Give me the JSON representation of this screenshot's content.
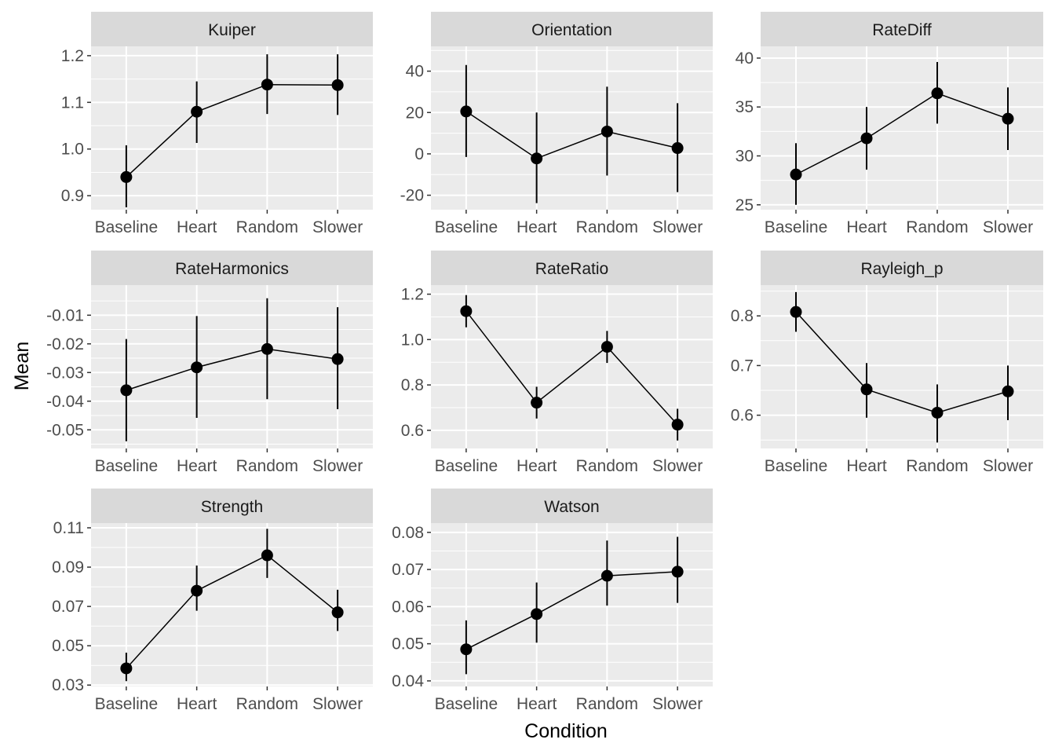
{
  "chart_data": {
    "type": "line",
    "xlabel": "Condition",
    "ylabel": "Mean",
    "categories": [
      "Baseline",
      "Heart",
      "Random",
      "Slower"
    ],
    "panels": [
      {
        "name": "Kuiper",
        "ylim": [
          0.87,
          1.22
        ],
        "yticks": [
          0.9,
          1.0,
          1.1,
          1.2
        ],
        "tick_labels": [
          "0.9",
          "1.0",
          "1.1",
          "1.2"
        ],
        "mean": [
          0.94,
          1.08,
          1.138,
          1.137
        ],
        "lower": [
          0.875,
          1.013,
          1.075,
          1.073
        ],
        "upper": [
          1.008,
          1.145,
          1.203,
          1.203
        ]
      },
      {
        "name": "Orientation",
        "ylim": [
          -27,
          52
        ],
        "yticks": [
          -20,
          0,
          20,
          40
        ],
        "tick_labels": [
          "-20",
          "0",
          "20",
          "40"
        ],
        "mean": [
          20.5,
          -2.2,
          10.8,
          2.8
        ],
        "lower": [
          -1.5,
          -23.8,
          -10.5,
          -18.5
        ],
        "upper": [
          43,
          20,
          32.5,
          24.5
        ]
      },
      {
        "name": "RateDiff",
        "ylim": [
          24.5,
          41.2
        ],
        "yticks": [
          25,
          30,
          35,
          40
        ],
        "tick_labels": [
          "25",
          "30",
          "35",
          "40"
        ],
        "mean": [
          28.1,
          31.8,
          36.4,
          33.8
        ],
        "lower": [
          25,
          28.6,
          33.3,
          30.6
        ],
        "upper": [
          31.3,
          35,
          39.6,
          37
        ]
      },
      {
        "name": "RateHarmonics",
        "ylim": [
          -0.0565,
          0.0005
        ],
        "yticks": [
          -0.05,
          -0.04,
          -0.03,
          -0.02,
          -0.01
        ],
        "tick_labels": [
          "-0.05",
          "-0.04",
          "-0.03",
          "-0.02",
          "-0.01"
        ],
        "mean": [
          -0.0362,
          -0.0282,
          -0.0218,
          -0.0253
        ],
        "lower": [
          -0.054,
          -0.0458,
          -0.0393,
          -0.0428
        ],
        "upper": [
          -0.0183,
          -0.0103,
          -0.0041,
          -0.0072
        ]
      },
      {
        "name": "RateRatio",
        "ylim": [
          0.52,
          1.24
        ],
        "yticks": [
          0.6,
          0.8,
          1.0,
          1.2
        ],
        "tick_labels": [
          "0.6",
          "0.8",
          "1.0",
          "1.2"
        ],
        "mean": [
          1.125,
          0.722,
          0.968,
          0.625
        ],
        "lower": [
          1.054,
          0.652,
          0.897,
          0.555
        ],
        "upper": [
          1.196,
          0.792,
          1.038,
          0.695
        ]
      },
      {
        "name": "Rayleigh_p",
        "ylim": [
          0.533,
          0.862
        ],
        "yticks": [
          0.6,
          0.7,
          0.8
        ],
        "tick_labels": [
          "0.6",
          "0.7",
          "0.8"
        ],
        "mean": [
          0.808,
          0.652,
          0.605,
          0.648
        ],
        "lower": [
          0.768,
          0.595,
          0.545,
          0.59
        ],
        "upper": [
          0.848,
          0.705,
          0.662,
          0.7
        ]
      },
      {
        "name": "Strength",
        "ylim": [
          0.0293,
          0.1124
        ],
        "yticks": [
          0.03,
          0.05,
          0.07,
          0.09,
          0.11
        ],
        "tick_labels": [
          "0.03",
          "0.05",
          "0.07",
          "0.09",
          "0.11"
        ],
        "mean": [
          0.0385,
          0.078,
          0.096,
          0.067
        ],
        "lower": [
          0.032,
          0.0678,
          0.0845,
          0.0575
        ],
        "upper": [
          0.0465,
          0.0908,
          0.1095,
          0.0785
        ]
      },
      {
        "name": "Watson",
        "ylim": [
          0.0385,
          0.0825
        ],
        "yticks": [
          0.04,
          0.05,
          0.06,
          0.07,
          0.08
        ],
        "tick_labels": [
          "0.04",
          "0.05",
          "0.06",
          "0.07",
          "0.08"
        ],
        "mean": [
          0.0485,
          0.058,
          0.0683,
          0.0694
        ],
        "lower": [
          0.0418,
          0.0503,
          0.0603,
          0.061
        ],
        "upper": [
          0.0563,
          0.0665,
          0.0778,
          0.0788
        ]
      }
    ],
    "grid": true,
    "legend": "none"
  }
}
